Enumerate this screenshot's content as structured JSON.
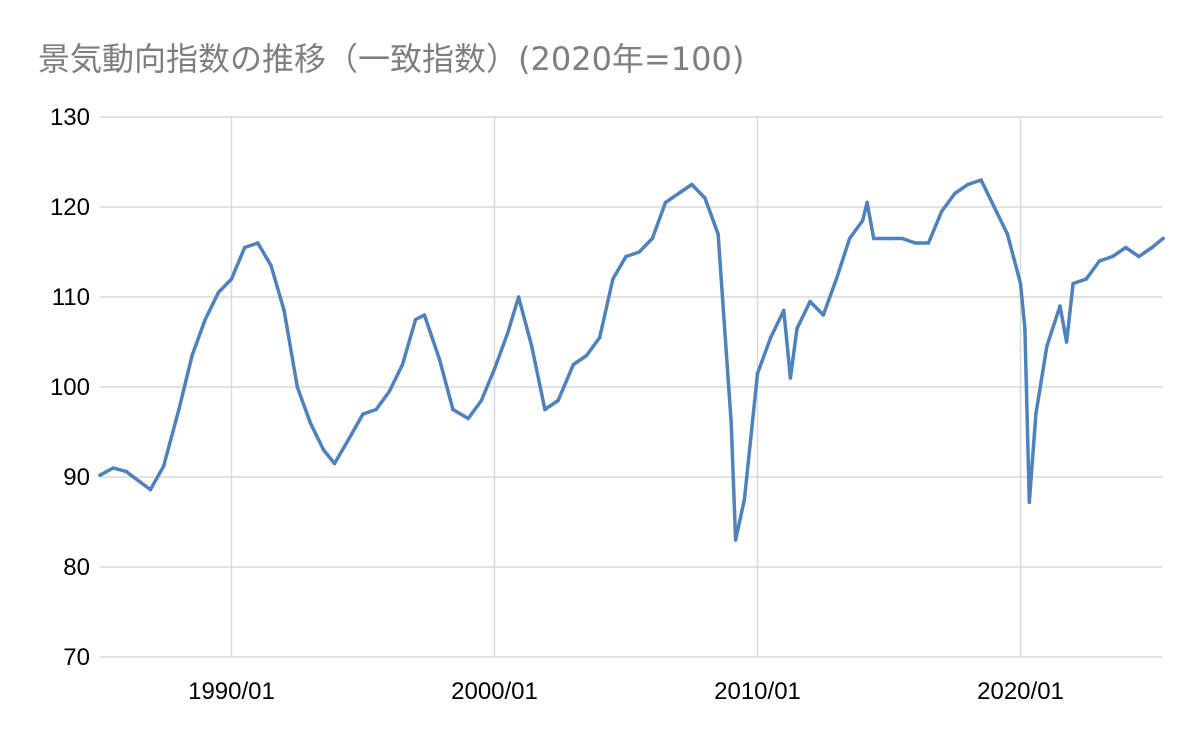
{
  "chart_data": {
    "type": "line",
    "title": "景気動向指数の推移（一致指数）(2020年=100)",
    "xlabel": "",
    "ylabel": "",
    "ylim": [
      70,
      130
    ],
    "yticks": [
      70,
      80,
      90,
      100,
      110,
      120,
      130
    ],
    "xlim": [
      "1985/01",
      "2025/06"
    ],
    "xticks": [
      "1990/01",
      "2000/01",
      "2010/01",
      "2020/01"
    ],
    "grid": true,
    "legend": "none",
    "color": "#4f81bd",
    "series": [
      {
        "x": [
          "1985/01",
          "1985/07",
          "1986/01",
          "1986/07",
          "1986/12",
          "1987/06",
          "1988/01",
          "1988/07",
          "1989/01",
          "1989/07",
          "1990/01",
          "1990/07",
          "1991/01",
          "1991/07",
          "1992/01",
          "1992/07",
          "1993/01",
          "1993/07",
          "1993/12",
          "1994/06",
          "1995/01",
          "1995/07",
          "1996/01",
          "1996/07",
          "1997/01",
          "1997/05",
          "1997/12",
          "1998/06",
          "1999/01",
          "1999/07",
          "2000/01",
          "2000/07",
          "2000/12",
          "2001/06",
          "2001/12",
          "2002/06",
          "2003/01",
          "2003/07",
          "2004/01",
          "2004/07",
          "2005/01",
          "2005/07",
          "2006/01",
          "2006/07",
          "2007/01",
          "2007/07",
          "2008/01",
          "2008/07",
          "2009/01",
          "2009/03",
          "2009/07",
          "2010/01",
          "2010/07",
          "2011/01",
          "2011/04",
          "2011/07",
          "2012/01",
          "2012/07",
          "2013/01",
          "2013/07",
          "2014/01",
          "2014/03",
          "2014/06",
          "2015/01",
          "2015/07",
          "2016/01",
          "2016/07",
          "2017/01",
          "2017/07",
          "2018/01",
          "2018/07",
          "2019/01",
          "2019/07",
          "2020/01",
          "2020/03",
          "2020/05",
          "2020/08",
          "2021/01",
          "2021/07",
          "2021/10",
          "2022/01",
          "2022/07",
          "2023/01",
          "2023/07",
          "2024/01",
          "2024/07",
          "2025/01",
          "2025/06"
        ],
        "y": [
          90.2,
          91.0,
          90.6,
          89.5,
          88.6,
          91.2,
          97.5,
          103.5,
          107.5,
          110.5,
          112.0,
          115.5,
          116.0,
          113.5,
          108.5,
          100.0,
          96.0,
          93.0,
          91.5,
          94.0,
          97.0,
          97.5,
          99.5,
          102.5,
          107.5,
          108.0,
          103.0,
          97.5,
          96.5,
          98.5,
          102.0,
          106.0,
          110.0,
          104.5,
          97.5,
          98.5,
          102.5,
          103.5,
          105.5,
          112.0,
          114.5,
          115.0,
          116.5,
          120.5,
          121.5,
          122.5,
          121.0,
          117.0,
          96.0,
          83.0,
          87.5,
          101.5,
          105.5,
          108.5,
          101.0,
          106.5,
          109.5,
          108.0,
          112.0,
          116.5,
          118.5,
          120.5,
          116.5,
          116.5,
          116.5,
          116.0,
          116.0,
          119.5,
          121.5,
          122.5,
          123.0,
          120.0,
          117.0,
          111.5,
          106.5,
          87.2,
          97.0,
          104.5,
          109.0,
          105.0,
          111.5,
          112.0,
          114.0,
          114.5,
          115.5,
          114.5,
          115.5,
          116.5
        ]
      }
    ]
  }
}
